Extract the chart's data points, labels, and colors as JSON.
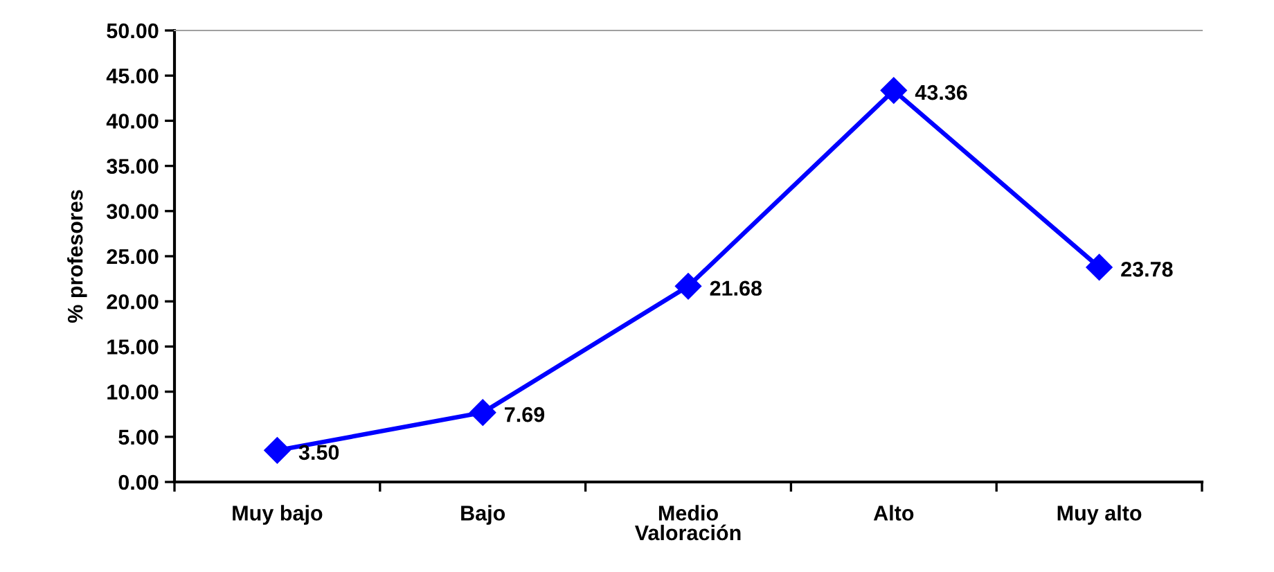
{
  "chart_data": {
    "type": "line",
    "xlabel": "Valoración",
    "ylabel": "% profesores",
    "categories": [
      "Muy bajo",
      "Bajo",
      "Medio",
      "Alto",
      "Muy alto"
    ],
    "series": [
      {
        "color": "#0000ff",
        "values": [
          3.5,
          7.69,
          21.68,
          43.36,
          23.78
        ],
        "value_labels": [
          "3.50",
          "7.69",
          "21.68",
          "43.36",
          "23.78"
        ]
      }
    ],
    "ylim": [
      0,
      50
    ],
    "yticks": [
      {
        "value": 0,
        "label": "0.00"
      },
      {
        "value": 5,
        "label": "5.00"
      },
      {
        "value": 10,
        "label": "10.00"
      },
      {
        "value": 15,
        "label": "15.00"
      },
      {
        "value": 20,
        "label": "20.00"
      },
      {
        "value": 25,
        "label": "25.00"
      },
      {
        "value": 30,
        "label": "30.00"
      },
      {
        "value": 35,
        "label": "35.00"
      },
      {
        "value": 40,
        "label": "40.00"
      },
      {
        "value": 45,
        "label": "45.00"
      },
      {
        "value": 50,
        "label": "50.00"
      }
    ],
    "marker": "diamond",
    "line_style": "solid"
  }
}
